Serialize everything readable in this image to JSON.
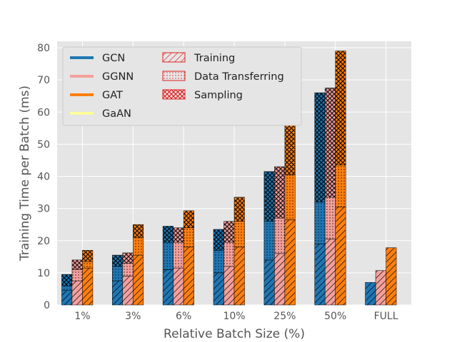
{
  "chart_data": {
    "type": "bar",
    "title": "",
    "xlabel": "Relative Batch Size (%)",
    "ylabel": "Training Time per Batch (ms)",
    "ylim": [
      0,
      82
    ],
    "yticks": [
      0,
      10,
      20,
      30,
      40,
      50,
      60,
      70,
      80
    ],
    "grid": true,
    "legend_position": "top-left",
    "categories": [
      "1%",
      "3%",
      "6%",
      "10%",
      "25%",
      "50%",
      "FULL"
    ],
    "components": [
      {
        "name": "Training",
        "pattern": "diagonal-hatch"
      },
      {
        "name": "Data Transferring",
        "pattern": "dots"
      },
      {
        "name": "Sampling",
        "pattern": "crosshatch"
      }
    ],
    "series": [
      {
        "name": "GCN",
        "color": "#1f77b4",
        "training": [
          4.5,
          7.5,
          11,
          10,
          14,
          19,
          7
        ],
        "transferring": [
          1.5,
          4.5,
          8.5,
          7,
          12,
          13,
          0
        ],
        "sampling": [
          3.5,
          3.5,
          5,
          6.5,
          15.5,
          34,
          0
        ]
      },
      {
        "name": "GGNN",
        "color": "#f4a09c",
        "training": [
          7.5,
          9,
          11.5,
          12,
          16,
          20.5,
          10.7
        ],
        "transferring": [
          3.5,
          4,
          8,
          7.5,
          11,
          13,
          0
        ],
        "sampling": [
          3,
          3.2,
          4.5,
          6.5,
          16,
          34,
          0
        ]
      },
      {
        "name": "GAT",
        "color": "#ff7f0e",
        "training": [
          11.5,
          15.5,
          18,
          18,
          26.5,
          30.5,
          17.8
        ],
        "transferring": [
          2,
          5.5,
          6,
          8,
          14,
          13,
          0
        ],
        "sampling": [
          3.5,
          4,
          5.3,
          7.5,
          16.5,
          35.5,
          0
        ]
      },
      {
        "name": "GaAN",
        "color": "#ffff99",
        "training": [
          0,
          0,
          0,
          0,
          0,
          0,
          0
        ],
        "transferring": [
          0,
          0,
          0,
          0,
          0,
          0,
          0
        ],
        "sampling": [
          0,
          0,
          0,
          0,
          0,
          0,
          0
        ]
      }
    ]
  },
  "legend": {
    "models": [
      "GCN",
      "GGNN",
      "GAT",
      "GaAN"
    ],
    "components": [
      "Training",
      "Data Transferring",
      "Sampling"
    ]
  }
}
